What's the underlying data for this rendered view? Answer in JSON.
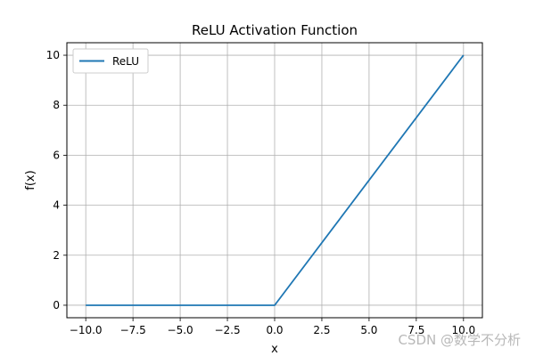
{
  "chart_data": {
    "type": "line",
    "title": "ReLU Activation Function",
    "xlabel": "x",
    "ylabel": "f(x)",
    "xlim": [
      -11.0,
      11.0
    ],
    "ylim": [
      -0.5,
      10.5
    ],
    "xticks": [
      -10.0,
      -7.5,
      -5.0,
      -2.5,
      0.0,
      2.5,
      5.0,
      7.5,
      10.0
    ],
    "xtick_labels": [
      "−10.0",
      "−7.5",
      "−5.0",
      "−2.5",
      "0.0",
      "2.5",
      "5.0",
      "7.5",
      "10.0"
    ],
    "yticks": [
      0,
      2,
      4,
      6,
      8,
      10
    ],
    "ytick_labels": [
      "0",
      "2",
      "4",
      "6",
      "8",
      "10"
    ],
    "grid": true,
    "legend_position": "top-left",
    "series": [
      {
        "name": "ReLU",
        "color": "#1f77b4",
        "x": [
          -10.0,
          0.0,
          10.0
        ],
        "y": [
          0.0,
          0.0,
          10.0
        ]
      }
    ]
  },
  "watermark": "CSDN @数学不分析"
}
